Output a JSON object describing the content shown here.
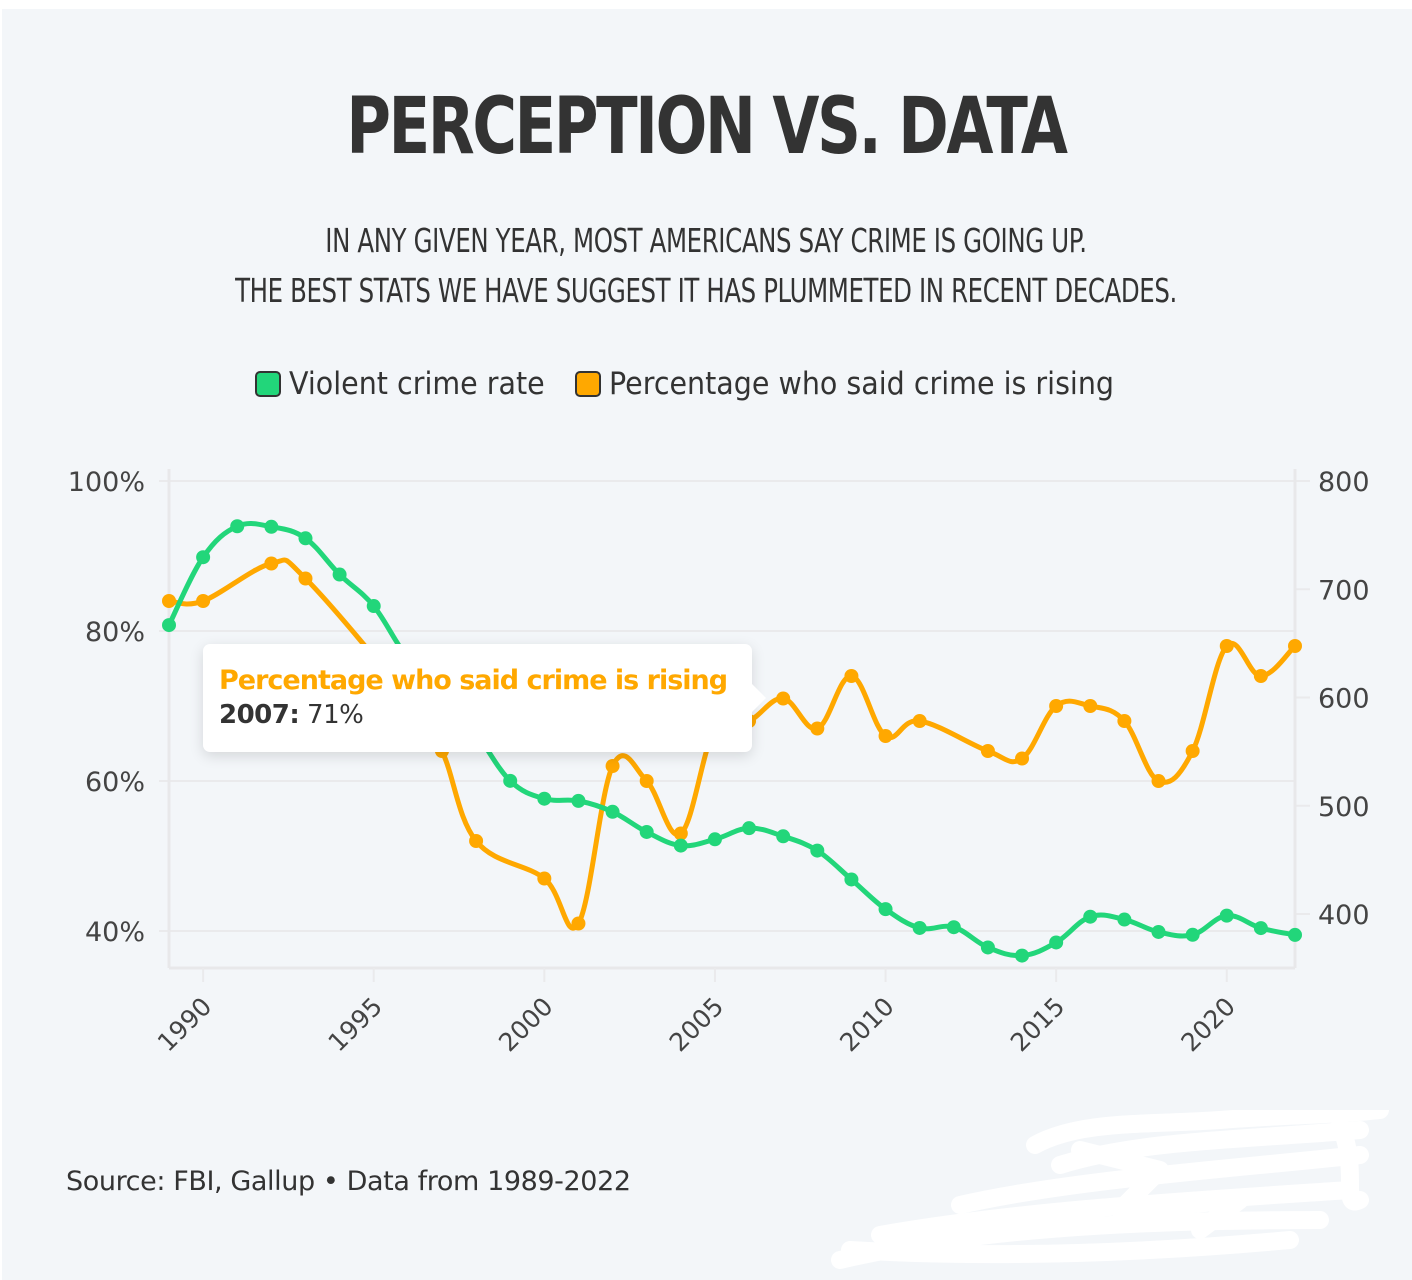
{
  "title": "PERCEPTION VS. DATA",
  "subtitle_lines": [
    "IN ANY GIVEN YEAR, MOST AMERICANS SAY CRIME IS GOING UP.",
    "THE BEST STATS WE HAVE SUGGEST IT HAS PLUMMETED IN RECENT DECADES."
  ],
  "legend": [
    {
      "label": "Violent crime rate",
      "color": "#22d67a",
      "icon": "green-square-swatch"
    },
    {
      "label": "Percentage who said crime is rising",
      "color": "#ffa800",
      "icon": "orange-square-swatch"
    }
  ],
  "tooltip": {
    "series": "Percentage who said crime is rising",
    "year": "2007:",
    "value": "71%"
  },
  "source": "Source: FBI, Gallup • Data from 1989-2022",
  "chart_data": {
    "type": "line",
    "title": "PERCEPTION VS. DATA",
    "xlabel": "",
    "x": [
      1989,
      1990,
      1991,
      1992,
      1993,
      1994,
      1995,
      1996,
      1997,
      1998,
      1999,
      2000,
      2001,
      2002,
      2003,
      2004,
      2005,
      2006,
      2007,
      2008,
      2009,
      2010,
      2011,
      2012,
      2013,
      2014,
      2015,
      2016,
      2017,
      2018,
      2019,
      2020,
      2021,
      2022
    ],
    "x_ticks": [
      "1990",
      "1995",
      "2000",
      "2005",
      "2010",
      "2015",
      "2020"
    ],
    "x_tick_values": [
      1990,
      1995,
      2000,
      2005,
      2010,
      2015,
      2020
    ],
    "xlim": [
      1989,
      2022
    ],
    "y_left": {
      "label": "",
      "ticks": [
        "40%",
        "60%",
        "80%",
        "100%"
      ],
      "tick_values": [
        40,
        60,
        80,
        100
      ],
      "ylim": [
        34,
        100
      ]
    },
    "y_right": {
      "label": "",
      "ticks": [
        "400",
        "500",
        "600",
        "700",
        "800"
      ],
      "tick_values": [
        400,
        500,
        600,
        700,
        800
      ],
      "ylim": [
        346,
        800
      ]
    },
    "grid": true,
    "legend_position": "top-center",
    "series": [
      {
        "name": "Violent crime rate",
        "axis": "right",
        "color": "#22d67a",
        "values": [
          666.9,
          729.6,
          758.2,
          757.7,
          747.1,
          713.6,
          684.5,
          636.6,
          611.0,
          567.6,
          523.0,
          506.5,
          504.5,
          494.4,
          475.8,
          463.2,
          469.0,
          479.3,
          471.8,
          458.6,
          431.9,
          404.5,
          387.1,
          387.8,
          369.1,
          361.6,
          373.7,
          397.5,
          394.9,
          383.4,
          380.8,
          398.5,
          387.0,
          380.7
        ]
      },
      {
        "name": "Percentage who said crime is rising",
        "axis": "left",
        "color": "#ffa800",
        "values": [
          84,
          84,
          null,
          89,
          87,
          null,
          null,
          71,
          64,
          52,
          null,
          47,
          41,
          62,
          60,
          53,
          67,
          68,
          71,
          67,
          74,
          66,
          68,
          null,
          64,
          63,
          70,
          70,
          68,
          60,
          64,
          78,
          74,
          78
        ]
      }
    ]
  }
}
